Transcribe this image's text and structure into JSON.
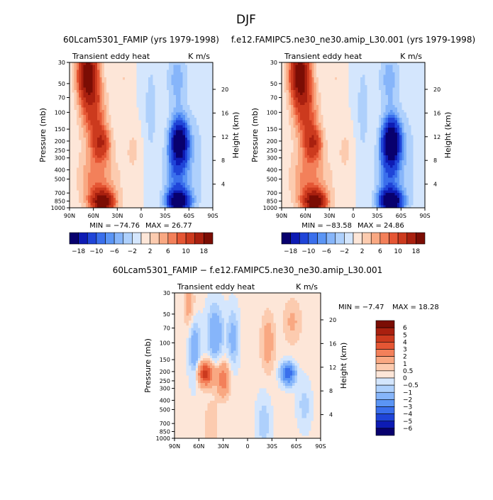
{
  "figure_title": "DJF",
  "chart_data": [
    {
      "type": "heatmap",
      "id": "panel-model",
      "title": "60Lcam5301_FAMIP (yrs 1979-1998)",
      "left_label": "Transient eddy heat",
      "right_label": "K m/s",
      "xlabel": "",
      "ylabel": "Pressure (mb)",
      "y2label": "Height (km)",
      "x_ticks": [
        "90N",
        "60N",
        "30N",
        "0",
        "30S",
        "60S",
        "90S"
      ],
      "x_range": [
        90,
        -90
      ],
      "y_ticks": [
        30,
        50,
        70,
        100,
        150,
        200,
        250,
        300,
        400,
        500,
        700,
        850,
        1000
      ],
      "y_range": [
        1000,
        30
      ],
      "height_ticks": [
        4,
        8,
        12,
        16,
        20
      ],
      "min_text": "MIN = −74.76",
      "max_text": "MAX = 26.77",
      "colorbar": {
        "orientation": "horizontal",
        "labels": [
          "−18",
          "−10",
          "−6",
          "−2",
          "2",
          "6",
          "10",
          "18"
        ],
        "colors": [
          "#08006e",
          "#0d1bb4",
          "#1f44d8",
          "#3a6fec",
          "#5b95f5",
          "#86b5fa",
          "#aed0fc",
          "#d4e6fd",
          "#fde6d8",
          "#fccbaf",
          "#f9a882",
          "#f3805a",
          "#e55634",
          "#cc3a1e",
          "#a9200f",
          "#7b0d04"
        ]
      },
      "features": [
        {
          "name": "NH high-latitude stratospheric maximum",
          "lat": 65,
          "p": 40,
          "value": 18
        },
        {
          "name": "NH mid-latitude upper tropospheric maximum",
          "lat": 52,
          "p": 200,
          "value": 10
        },
        {
          "name": "NH lower tropospheric maximum",
          "lat": 48,
          "p": 850,
          "value": 18
        },
        {
          "name": "SH upper tropospheric minimum",
          "lat": -48,
          "p": 200,
          "value": -18
        },
        {
          "name": "SH lower tropospheric minimum",
          "lat": -48,
          "p": 850,
          "value": -18
        },
        {
          "name": "Tropical negative band",
          "lat": -10,
          "p": 300,
          "value": -2
        }
      ]
    },
    {
      "type": "heatmap",
      "id": "panel-obs",
      "title": "f.e12.FAMIPC5.ne30_ne30.amip_L30.001 (yrs 1979-1998)",
      "left_label": "Transient eddy heat",
      "right_label": "K m/s",
      "xlabel": "",
      "ylabel": "Pressure (mb)",
      "y2label": "Height (km)",
      "x_ticks": [
        "90N",
        "60N",
        "30N",
        "0",
        "30S",
        "60S",
        "90S"
      ],
      "x_range": [
        90,
        -90
      ],
      "y_ticks": [
        30,
        50,
        70,
        100,
        150,
        200,
        250,
        300,
        400,
        500,
        700,
        850,
        1000
      ],
      "y_range": [
        1000,
        30
      ],
      "height_ticks": [
        4,
        8,
        12,
        16,
        20
      ],
      "min_text": "MIN = −83.58",
      "max_text": "MAX = 24.86",
      "colorbar": {
        "orientation": "horizontal",
        "labels": [
          "−18",
          "−10",
          "−6",
          "−2",
          "2",
          "6",
          "10",
          "18"
        ],
        "colors": [
          "#08006e",
          "#0d1bb4",
          "#1f44d8",
          "#3a6fec",
          "#5b95f5",
          "#86b5fa",
          "#aed0fc",
          "#d4e6fd",
          "#fde6d8",
          "#fccbaf",
          "#f9a882",
          "#f3805a",
          "#e55634",
          "#cc3a1e",
          "#a9200f",
          "#7b0d04"
        ]
      },
      "features": [
        {
          "name": "NH high-latitude stratospheric maximum",
          "lat": 65,
          "p": 40,
          "value": 18
        },
        {
          "name": "NH mid-latitude upper tropospheric maximum",
          "lat": 52,
          "p": 200,
          "value": 10
        },
        {
          "name": "NH lower tropospheric maximum",
          "lat": 48,
          "p": 850,
          "value": 18
        },
        {
          "name": "SH upper tropospheric minimum",
          "lat": -48,
          "p": 180,
          "value": -18
        },
        {
          "name": "SH lower tropospheric minimum",
          "lat": -48,
          "p": 850,
          "value": -18
        },
        {
          "name": "Tropical negative band",
          "lat": -10,
          "p": 300,
          "value": -2
        }
      ]
    },
    {
      "type": "heatmap",
      "id": "panel-diff",
      "title": "60Lcam5301_FAMIP − f.e12.FAMIPC5.ne30_ne30.amip_L30.001",
      "left_label": "Transient eddy heat",
      "right_label": "K m/s",
      "xlabel": "",
      "ylabel": "Pressure (mb)",
      "y2label": "Height (km)",
      "x_ticks": [
        "90N",
        "60N",
        "30N",
        "0",
        "30S",
        "60S",
        "90S"
      ],
      "x_range": [
        90,
        -90
      ],
      "y_ticks": [
        30,
        50,
        70,
        100,
        150,
        200,
        250,
        300,
        400,
        500,
        700,
        850,
        1000
      ],
      "y_range": [
        1000,
        30
      ],
      "height_ticks": [
        4,
        8,
        12,
        16,
        20
      ],
      "min_text": "MIN = −7.47",
      "max_text": "MAX = 18.28",
      "colorbar": {
        "orientation": "vertical",
        "labels": [
          "6",
          "5",
          "4",
          "3",
          "2",
          "1",
          "0.5",
          "0",
          "−0.5",
          "−1",
          "−2",
          "−3",
          "−4",
          "−5",
          "−6"
        ],
        "colors": [
          "#7b0d04",
          "#a9200f",
          "#cc3a1e",
          "#e55634",
          "#f3805a",
          "#f9a882",
          "#fccbaf",
          "#fde6d8",
          "#d4e6fd",
          "#aed0fc",
          "#86b5fa",
          "#5b95f5",
          "#3a6fec",
          "#1f44d8",
          "#0d1bb4",
          "#08006e"
        ]
      },
      "features": [
        {
          "name": "NH mid-latitude upper positive",
          "lat": 52,
          "p": 200,
          "value": 4
        },
        {
          "name": "SH mid-latitude upper negative",
          "lat": -52,
          "p": 200,
          "value": -4
        },
        {
          "name": "NH high-latitude stratospheric negative",
          "lat": 40,
          "p": 60,
          "value": -3
        }
      ]
    }
  ]
}
